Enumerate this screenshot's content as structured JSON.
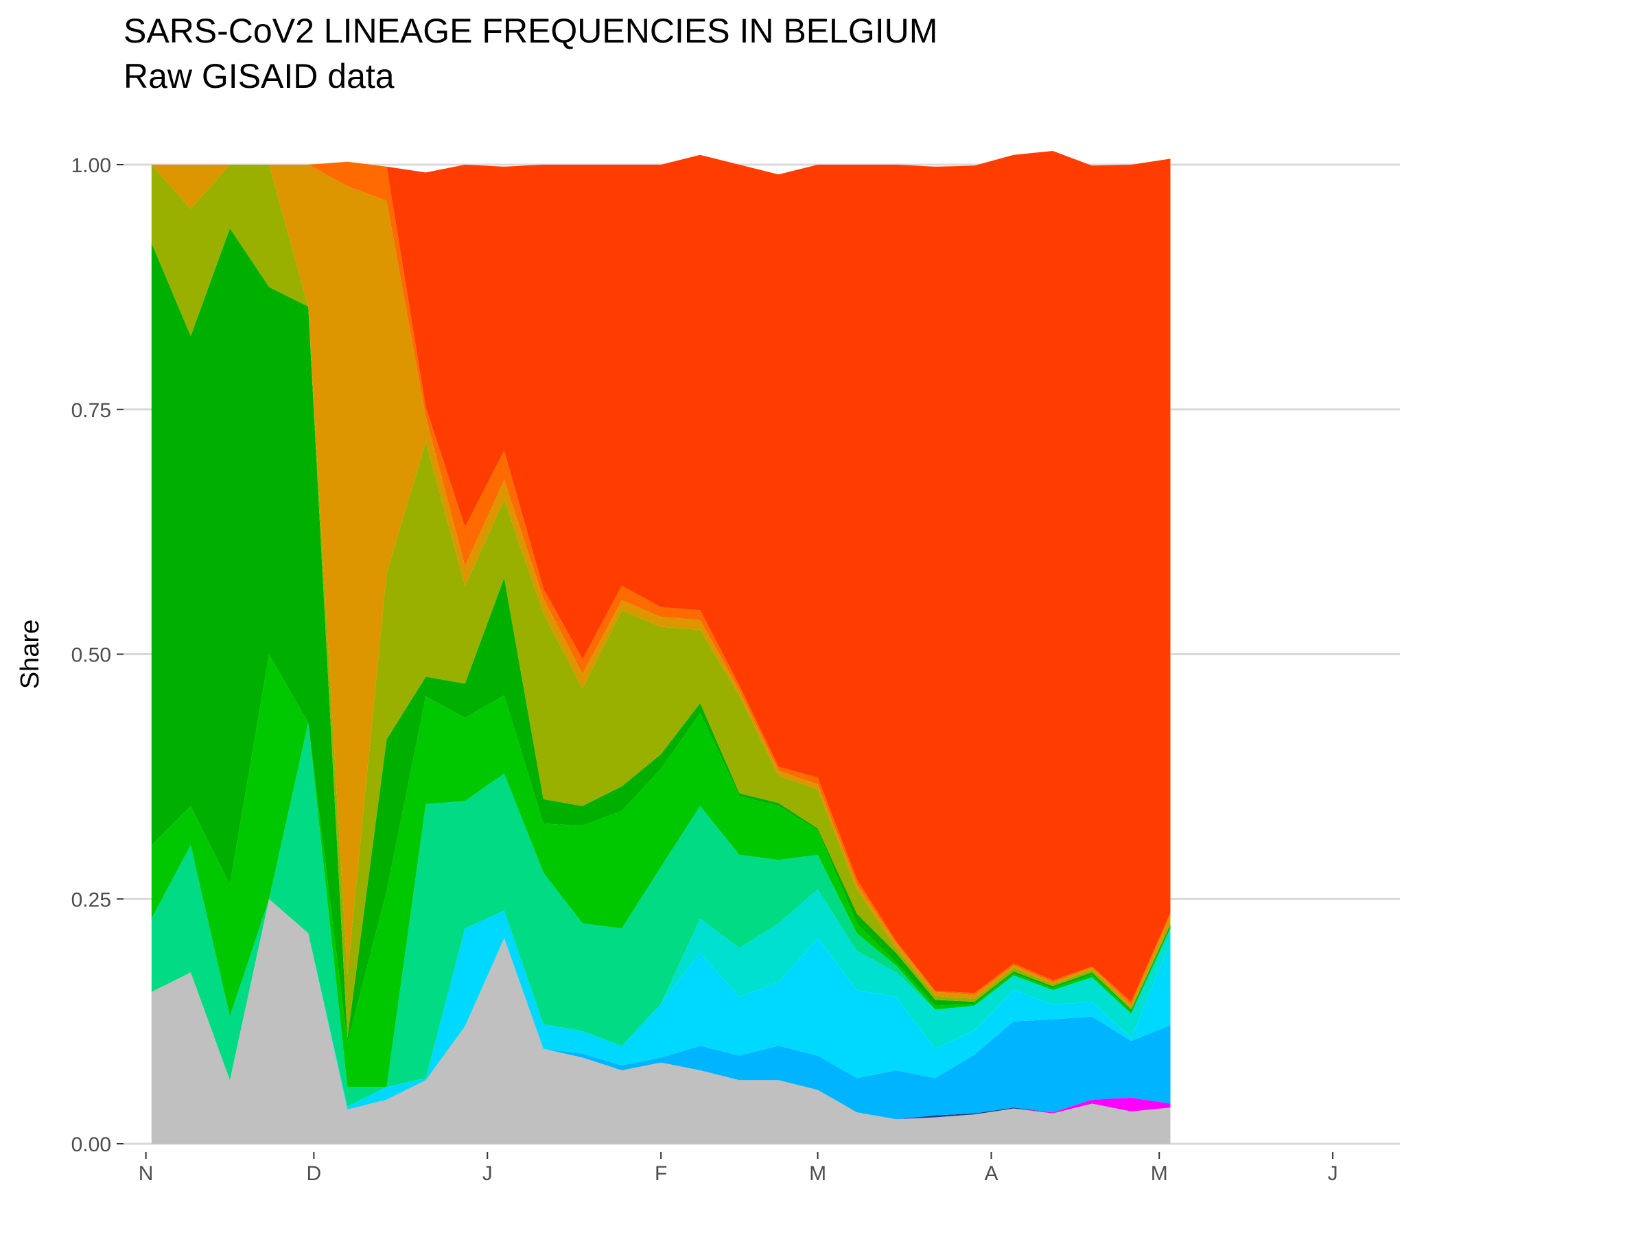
{
  "chart_data": {
    "type": "area",
    "stacked": "fill",
    "title": "SARS-CoV2 LINEAGE FREQUENCIES IN BELGIUM",
    "subtitle": "Raw GISAID data",
    "xlabel": "",
    "ylabel": "Share",
    "x_ticks": [
      "N",
      "D",
      "J",
      "F",
      "M",
      "A",
      "M",
      "J"
    ],
    "x_tick_dates": [
      "2020-11-01",
      "2020-12-01",
      "2021-01-01",
      "2021-02-01",
      "2021-03-01",
      "2021-04-01",
      "2021-05-01",
      "2021-06-01"
    ],
    "xlim": [
      "2020-10-28",
      "2021-06-13"
    ],
    "ylim": [
      0,
      1
    ],
    "y_ticks": [
      "0.00",
      "0.25",
      "0.50",
      "0.75",
      "1.00"
    ],
    "y_tick_values": [
      0,
      0.25,
      0.5,
      0.75,
      1
    ],
    "grid": "horizontal major",
    "legend": "none",
    "x": [
      "2020-11-02",
      "2020-11-09",
      "2020-11-16",
      "2020-11-23",
      "2020-11-30",
      "2020-12-07",
      "2020-12-14",
      "2020-12-21",
      "2020-12-28",
      "2021-01-04",
      "2021-01-11",
      "2021-01-18",
      "2021-01-25",
      "2021-02-01",
      "2021-02-08",
      "2021-02-15",
      "2021-02-22",
      "2021-03-01",
      "2021-03-08",
      "2021-03-15",
      "2021-03-22",
      "2021-03-29",
      "2021-04-05",
      "2021-04-12",
      "2021-04-19",
      "2021-04-26",
      "2021-05-03"
    ],
    "series": [
      {
        "color": "#c0c0c0",
        "values": [
          0.155,
          0.175,
          0.065,
          0.25,
          0.215,
          0.035,
          0.045,
          0.065,
          0.12,
          0.21,
          0.097,
          0.088,
          0.075,
          0.083,
          0.075,
          0.065,
          0.065,
          0.055,
          0.032,
          0.025,
          0.027,
          0.03,
          0.036,
          0.031,
          0.041,
          0.033,
          0.037
        ]
      },
      {
        "color": "#ff00ff",
        "values": [
          0,
          0,
          0,
          0,
          0,
          0,
          0,
          0,
          0,
          0,
          0,
          0,
          0,
          0,
          0,
          0,
          0,
          0,
          0,
          0,
          0,
          0,
          0,
          0.001,
          0.004,
          0.014,
          0.004
        ]
      },
      {
        "color": "#1f3b8c",
        "values": [
          0,
          0,
          0,
          0,
          0,
          0,
          0,
          0,
          0,
          0,
          0,
          0,
          0,
          0,
          0,
          0,
          0,
          0,
          0,
          0,
          0.002,
          0.001,
          0.001,
          0,
          0,
          0,
          0
        ]
      },
      {
        "color": "#00b4ff",
        "values": [
          0,
          0,
          0,
          0,
          0,
          0,
          0,
          0,
          0,
          0,
          0,
          0.004,
          0.005,
          0.005,
          0.025,
          0.025,
          0.035,
          0.035,
          0.035,
          0.05,
          0.038,
          0.06,
          0.088,
          0.095,
          0.085,
          0.058,
          0.08
        ]
      },
      {
        "color": "#00d9ff",
        "values": [
          0,
          0,
          0,
          0,
          0,
          0.003,
          0.013,
          0.002,
          0.1,
          0.028,
          0.025,
          0.023,
          0.02,
          0.055,
          0.095,
          0.06,
          0.065,
          0.12,
          0.09,
          0.075,
          0.03,
          0.025,
          0.032,
          0.015,
          0.015,
          0.003,
          0.085
        ]
      },
      {
        "color": "#00e0d0",
        "values": [
          0,
          0,
          0,
          0,
          0,
          0,
          0,
          0,
          0,
          0,
          0,
          0,
          0,
          0,
          0.035,
          0.05,
          0.06,
          0.05,
          0.04,
          0.025,
          0.04,
          0.025,
          0.015,
          0.015,
          0.025,
          0.025,
          0.014
        ]
      },
      {
        "color": "#00db84",
        "values": [
          0.075,
          0.13,
          0.065,
          0,
          0.215,
          0.02,
          0,
          0.28,
          0.13,
          0.14,
          0.155,
          0.11,
          0.12,
          0.14,
          0.115,
          0.095,
          0.065,
          0.035,
          0.018,
          0.007,
          0,
          0,
          0,
          0,
          0,
          0,
          0
        ]
      },
      {
        "color": "#00c800",
        "values": [
          0.075,
          0.04,
          0.135,
          0.25,
          0,
          0.045,
          0.2,
          0.11,
          0.085,
          0.08,
          0.05,
          0.1,
          0.12,
          0.1,
          0.095,
          0.06,
          0.055,
          0.025,
          0.01,
          0.003,
          0.004,
          0.002,
          0.002,
          0.002,
          0.003,
          0.002,
          0.002
        ]
      },
      {
        "color": "#00b000",
        "values": [
          0.615,
          0.48,
          0.67,
          0.375,
          0.425,
          0.005,
          0.155,
          0.02,
          0.035,
          0.12,
          0.025,
          0.02,
          0.025,
          0.015,
          0.01,
          0.003,
          0.003,
          0.002,
          0.01,
          0.01,
          0.006,
          0.002,
          0.002,
          0.002,
          0.002,
          0.002,
          0.002
        ]
      },
      {
        "color": "#9ab000",
        "values": [
          0.08,
          0.13,
          0.065,
          0.125,
          0,
          0.065,
          0.17,
          0.24,
          0.1,
          0.08,
          0.19,
          0.12,
          0.18,
          0.13,
          0.075,
          0.1,
          0.028,
          0.04,
          0.025,
          0.005,
          0.004,
          0.003,
          0.004,
          0.002,
          0.003,
          0.002,
          0.002
        ]
      },
      {
        "color": "#dd9500",
        "values": [
          0,
          0.045,
          0,
          0,
          0.145,
          0.805,
          0.38,
          0.025,
          0.02,
          0.02,
          0.015,
          0.015,
          0.01,
          0.01,
          0.01,
          0.005,
          0.005,
          0.005,
          0.005,
          0.005,
          0.004,
          0.004,
          0.002,
          0.002,
          0.002,
          0.003,
          0.008
        ]
      },
      {
        "color": "#ff6b00",
        "values": [
          0,
          0,
          0,
          0,
          0,
          0.025,
          0.035,
          0.01,
          0.04,
          0.03,
          0.01,
          0.015,
          0.015,
          0.01,
          0.01,
          0.005,
          0.004,
          0.007,
          0.005,
          0.002,
          0.001,
          0.002,
          0.002,
          0.002,
          0.001,
          0.003,
          0.002
        ]
      },
      {
        "color": "#ff3d00",
        "values": [
          0,
          0,
          0,
          0,
          0,
          0,
          0,
          0.24,
          0.37,
          0.29,
          0.433,
          0.505,
          0.43,
          0.452,
          0.465,
          0.532,
          0.605,
          0.626,
          0.73,
          0.793,
          0.842,
          0.845,
          0.826,
          0.847,
          0.818,
          0.855,
          0.77
        ]
      }
    ]
  }
}
